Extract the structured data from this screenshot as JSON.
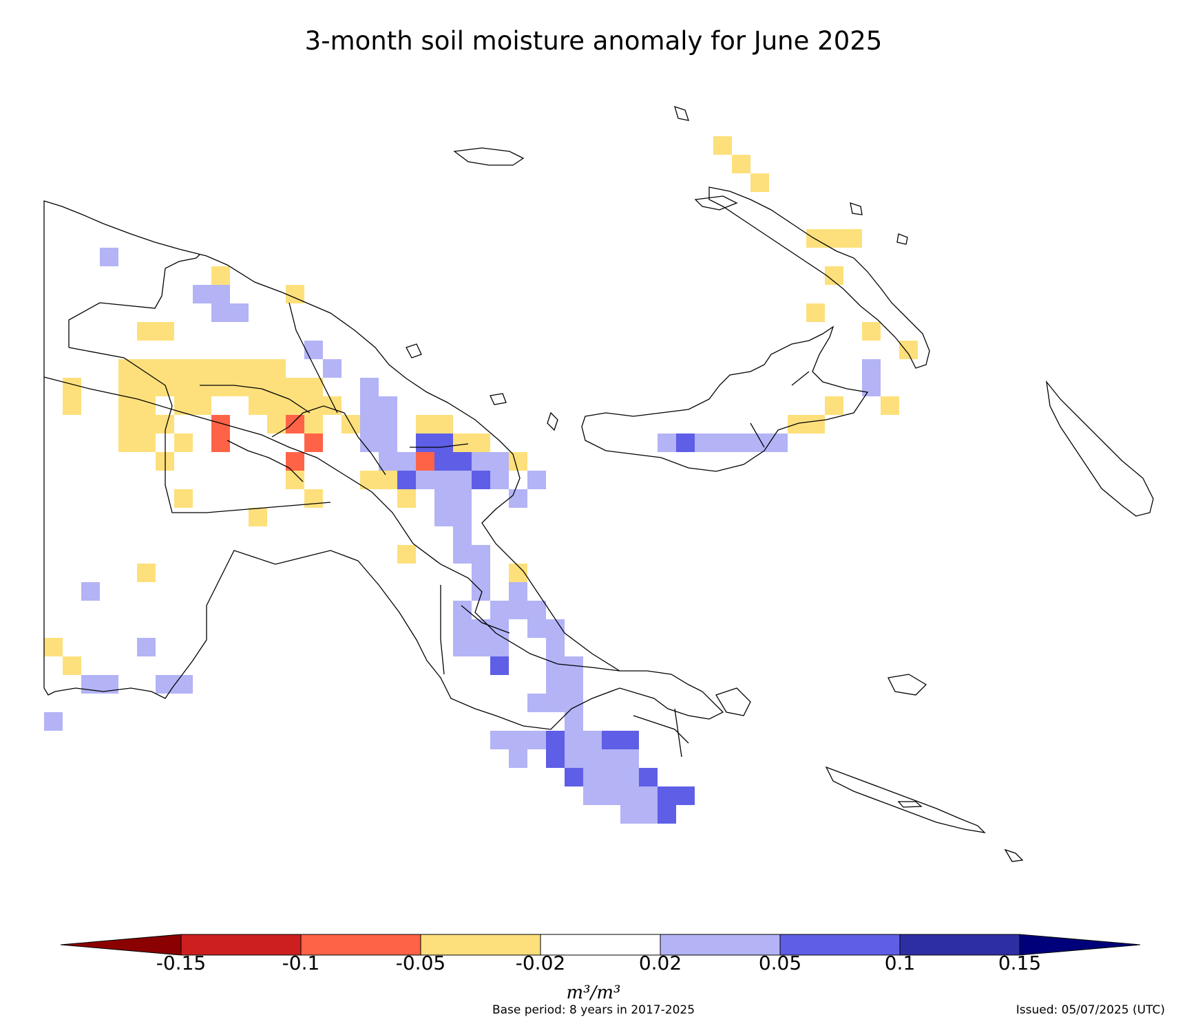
{
  "title": "3-month soil moisture anomaly for June 2025",
  "colorbar": {
    "ticks": [
      "-0.15",
      "-0.1",
      "-0.05",
      "-0.02",
      "0.02",
      "0.05",
      "0.1",
      "0.15"
    ],
    "colors": [
      "#8b0000",
      "#cd1f1f",
      "#ff6347",
      "#fde07c",
      "#ffffff",
      "#b3b3f6",
      "#5e5ee6",
      "#2e2ea3",
      "#00007a"
    ],
    "units": "m³/m³"
  },
  "footer": {
    "base_period": "Base period: 8 years in 2017-2025",
    "issued": "Issued: 05/07/2025 (UTC)"
  },
  "legend_classes": {
    "yellow": "-0.05 to -0.02",
    "red": "-0.1 to -0.05",
    "lightblue": "0.02 to 0.05",
    "blue": "0.05 to 0.1"
  }
}
